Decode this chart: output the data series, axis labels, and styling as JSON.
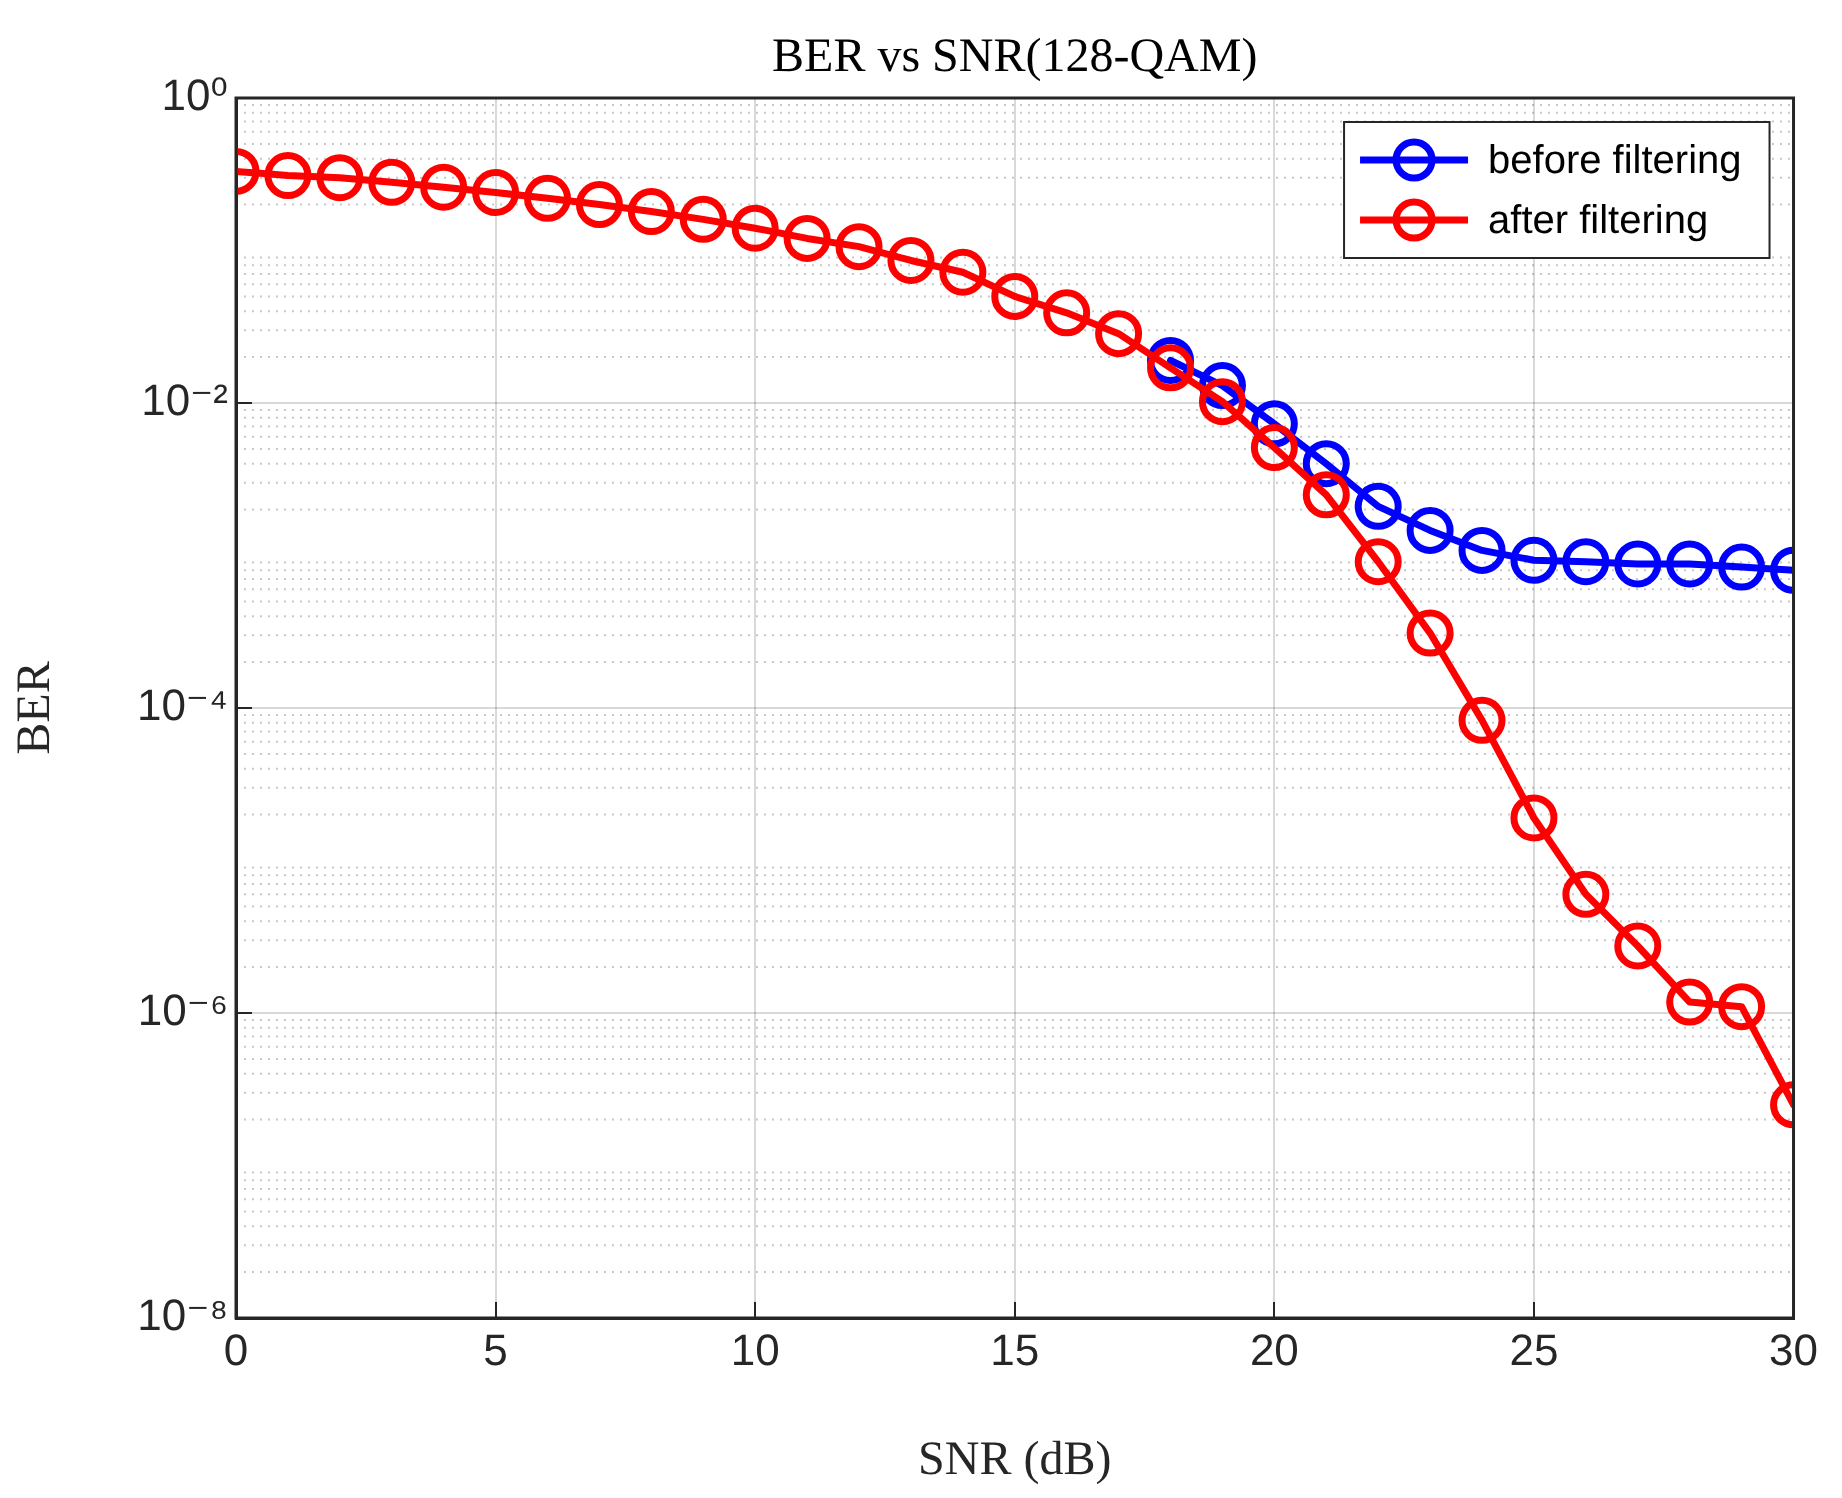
{
  "chart_data": {
    "type": "line",
    "title": "BER vs SNR(128-QAM)",
    "xlabel": "SNR (dB)",
    "ylabel": "BER",
    "log": "y",
    "grid": true,
    "legend": "top right",
    "marker": "circle",
    "line_style": "solid",
    "x": [
      0,
      1,
      2,
      3,
      4,
      5,
      6,
      7,
      8,
      9,
      10,
      11,
      12,
      13,
      14,
      15,
      16,
      17,
      18,
      19,
      20,
      21,
      22,
      23,
      24,
      25,
      26,
      27,
      28,
      29,
      30
    ],
    "xlim": [
      0,
      30
    ],
    "xticks": [
      0,
      5,
      10,
      15,
      20,
      25,
      30
    ],
    "ylim": [
      1e-08,
      1
    ],
    "yticks": [
      {
        "value": 1,
        "label": "10⁰"
      },
      {
        "value": 0.01,
        "label": "10⁻²"
      },
      {
        "value": 0.0001,
        "label": "10⁻⁴"
      },
      {
        "value": 1e-06,
        "label": "10⁻⁶"
      },
      {
        "value": 1e-08,
        "label": "10⁻⁸"
      }
    ],
    "series": [
      {
        "name": "before filtering",
        "color": "#0000ff",
        "values": [
          null,
          null,
          null,
          null,
          null,
          null,
          null,
          null,
          null,
          null,
          null,
          null,
          null,
          null,
          null,
          null,
          null,
          null,
          0.019,
          0.013,
          0.0073,
          0.004,
          0.0021,
          0.00146,
          0.00108,
          0.00093,
          0.00091,
          0.00088,
          0.00088,
          0.00084,
          0.0008
        ]
      },
      {
        "name": "after filtering",
        "color": "#ff0000",
        "values": [
          0.33,
          0.31,
          0.3,
          0.28,
          0.26,
          0.24,
          0.22,
          0.2,
          0.18,
          0.16,
          0.14,
          0.12,
          0.106,
          0.086,
          0.072,
          0.05,
          0.039,
          0.0285,
          0.017,
          0.0102,
          0.0051,
          0.0025,
          0.00091,
          0.00031,
          8.3e-05,
          1.9e-05,
          6e-06,
          2.75e-06,
          1.18e-06,
          1.1e-06,
          2.5e-07
        ]
      }
    ]
  }
}
